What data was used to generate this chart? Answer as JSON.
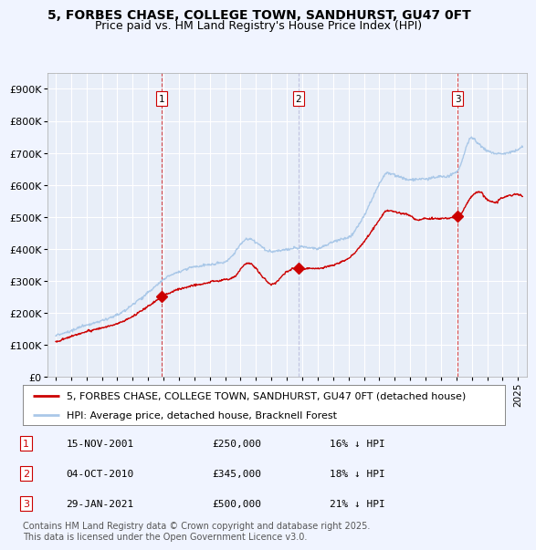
{
  "title": "5, FORBES CHASE, COLLEGE TOWN, SANDHURST, GU47 0FT",
  "subtitle": "Price paid vs. HM Land Registry's House Price Index (HPI)",
  "ytick_vals": [
    0,
    100000,
    200000,
    300000,
    400000,
    500000,
    600000,
    700000,
    800000,
    900000
  ],
  "ylim": [
    0,
    950000
  ],
  "xlim_start": 1994.5,
  "xlim_end": 2025.6,
  "hpi_color": "#aac8e8",
  "price_color": "#cc0000",
  "vline1_color": "#cc0000",
  "vline2_color": "#9999cc",
  "vline3_color": "#cc0000",
  "background_color": "#f0f4ff",
  "plot_bg": "#e8eef8",
  "grid_color": "#ffffff",
  "legend_label_red": "5, FORBES CHASE, COLLEGE TOWN, SANDHURST, GU47 0FT (detached house)",
  "legend_label_blue": "HPI: Average price, detached house, Bracknell Forest",
  "transactions": [
    {
      "num": 1,
      "date": "15-NOV-2001",
      "price": "£250,000",
      "pct": "16%",
      "year": 2001.88,
      "vline": "red"
    },
    {
      "num": 2,
      "date": "04-OCT-2010",
      "price": "£345,000",
      "pct": "18%",
      "year": 2010.75,
      "vline": "blue"
    },
    {
      "num": 3,
      "date": "29-JAN-2021",
      "price": "£500,000",
      "pct": "21%",
      "year": 2021.08,
      "vline": "red"
    }
  ],
  "footnote": "Contains HM Land Registry data © Crown copyright and database right 2025.\nThis data is licensed under the Open Government Licence v3.0.",
  "title_fontsize": 10,
  "subtitle_fontsize": 9,
  "tick_fontsize": 8,
  "legend_fontsize": 8,
  "table_fontsize": 8,
  "footnote_fontsize": 7
}
